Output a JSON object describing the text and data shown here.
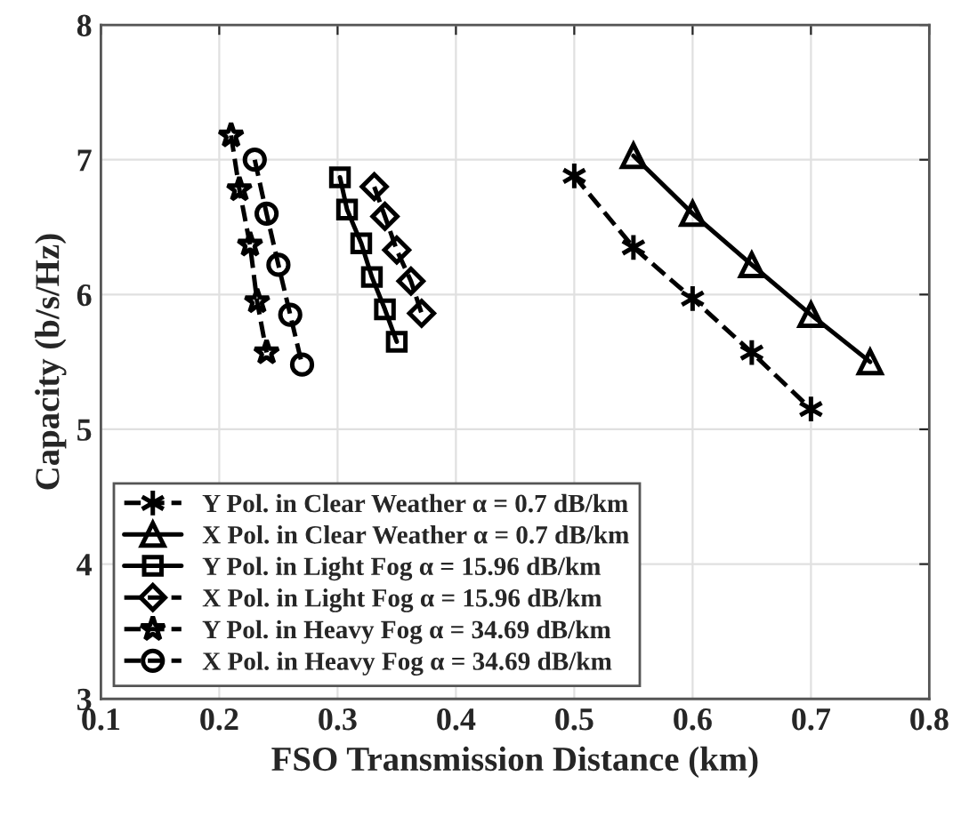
{
  "chart_data": {
    "type": "line",
    "xlabel": "FSO Transmission Distance (km)",
    "ylabel": "Capacity (b/s/Hz)",
    "xlim": [
      0.1,
      0.8
    ],
    "xticks": [
      0.1,
      0.2,
      0.3,
      0.4,
      0.5,
      0.6,
      0.7,
      0.8
    ],
    "ylim": [
      3,
      8
    ],
    "yticks": [
      3,
      4,
      5,
      6,
      7,
      8
    ],
    "grid": true,
    "legend": "bottom left",
    "tick_labels": "xy",
    "series": [
      {
        "name": "Y Pol. in Clear Weather α = 0.7 dB/km",
        "color": "#000000",
        "marker": "cross",
        "line_style": "dashed",
        "x": [
          0.5,
          0.55,
          0.6,
          0.65,
          0.7
        ],
        "values": [
          6.88,
          6.35,
          5.97,
          5.57,
          5.15
        ]
      },
      {
        "name": "X Pol. in Clear Weather α = 0.7 dB/km",
        "color": "#000000",
        "marker": "triangle",
        "line_style": "solid",
        "x": [
          0.55,
          0.6,
          0.65,
          0.7,
          0.75
        ],
        "values": [
          7.03,
          6.6,
          6.22,
          5.85,
          5.5
        ]
      },
      {
        "name": "Y Pol. in Light Fog α = 15.96 dB/km",
        "color": "#000000",
        "marker": "square",
        "line_style": "solid",
        "x": [
          0.302,
          0.308,
          0.32,
          0.329,
          0.34,
          0.35
        ],
        "values": [
          6.87,
          6.63,
          6.38,
          6.13,
          5.89,
          5.65
        ]
      },
      {
        "name": "X Pol. in Light Fog α = 15.96 dB/km",
        "color": "#000000",
        "marker": "diamond",
        "line_style": "dashed",
        "x": [
          0.331,
          0.34,
          0.35,
          0.362,
          0.371
        ],
        "values": [
          6.8,
          6.58,
          6.33,
          6.1,
          5.86
        ]
      },
      {
        "name": "Y Pol. in Heavy Fog α = 34.69 dB/km",
        "color": "#000000",
        "marker": "star",
        "line_style": "dashed",
        "x": [
          0.21,
          0.217,
          0.226,
          0.232,
          0.24
        ],
        "values": [
          7.18,
          6.78,
          6.37,
          5.95,
          5.57
        ]
      },
      {
        "name": "X Pol. in Heavy Fog α = 34.69 dB/km",
        "color": "#000000",
        "marker": "circle",
        "line_style": "dashed",
        "x": [
          0.23,
          0.24,
          0.25,
          0.26,
          0.27
        ],
        "values": [
          7.0,
          6.6,
          6.22,
          5.85,
          5.48
        ]
      }
    ]
  }
}
